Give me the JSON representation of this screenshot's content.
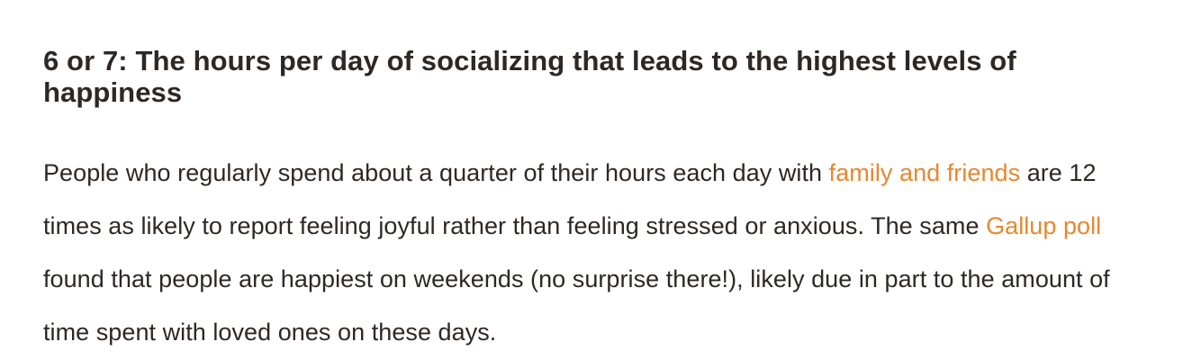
{
  "article": {
    "heading": "6 or 7: The hours per day of socializing that leads to the highest levels of happiness",
    "paragraph": {
      "text_1": "People who regularly spend about a quarter of their hours each day with ",
      "link_family_friends": "family and friends",
      "text_2": " are 12 times as likely to report feeling joyful rather than feeling stressed or anxious. The same ",
      "link_gallup_poll": "Gallup poll",
      "text_3": " found that people are happiest on weekends (no surprise there!), likely due in part to the amount of time spent with loved ones on these days."
    },
    "colors": {
      "text": "#2e2825",
      "link": "#e8872e",
      "background": "#ffffff"
    }
  }
}
